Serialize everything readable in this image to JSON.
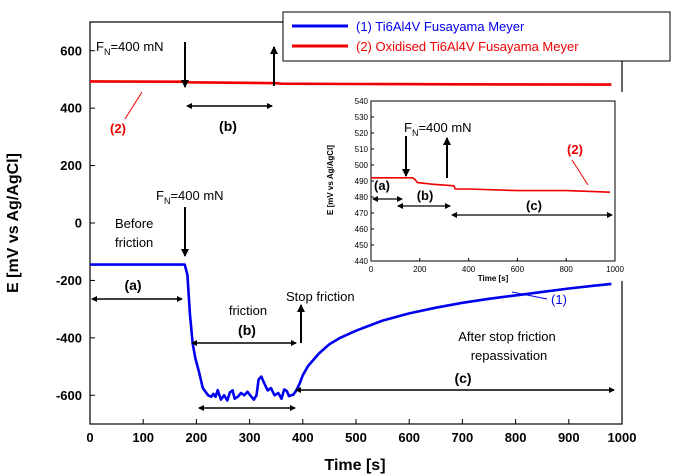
{
  "chart_data": [
    {
      "type": "line",
      "xlabel": "Time [s]",
      "ylabel": "E [mV vs Ag/AgCl]",
      "xlim": [
        0,
        1000
      ],
      "ylim": [
        -700,
        700
      ],
      "x_ticks": [
        "0",
        "100",
        "200",
        "300",
        "400",
        "500",
        "600",
        "700",
        "800",
        "900",
        "1000"
      ],
      "y_ticks": [
        "-600",
        "-400",
        "-200",
        "0",
        "200",
        "400",
        "600"
      ],
      "grid": false,
      "legend_position": "top-right",
      "series": [
        {
          "name": "(1) Ti6Al4V  Fusayama Meyer",
          "color": "#0000ee",
          "points": [
            [
              0,
              -145
            ],
            [
              100,
              -145
            ],
            [
              178,
              -145
            ],
            [
              183,
              -180
            ],
            [
              188,
              -320
            ],
            [
              193,
              -420
            ],
            [
              198,
              -470
            ],
            [
              205,
              -520
            ],
            [
              212,
              -575
            ],
            [
              218,
              -590
            ],
            [
              222,
              -600
            ],
            [
              228,
              -605
            ],
            [
              232,
              -595
            ],
            [
              236,
              -605
            ],
            [
              240,
              -582
            ],
            [
              246,
              -615
            ],
            [
              252,
              -600
            ],
            [
              258,
              -618
            ],
            [
              263,
              -590
            ],
            [
              268,
              -583
            ],
            [
              272,
              -612
            ],
            [
              278,
              -605
            ],
            [
              284,
              -592
            ],
            [
              290,
              -600
            ],
            [
              296,
              -588
            ],
            [
              302,
              -602
            ],
            [
              308,
              -615
            ],
            [
              313,
              -600
            ],
            [
              317,
              -545
            ],
            [
              322,
              -535
            ],
            [
              328,
              -560
            ],
            [
              334,
              -583
            ],
            [
              340,
              -575
            ],
            [
              347,
              -600
            ],
            [
              354,
              -592
            ],
            [
              360,
              -612
            ],
            [
              365,
              -580
            ],
            [
              370,
              -585
            ],
            [
              374,
              -603
            ],
            [
              378,
              -600
            ],
            [
              382,
              -598
            ],
            [
              386,
              -588
            ],
            [
              390,
              -575
            ],
            [
              395,
              -555
            ],
            [
              400,
              -530
            ],
            [
              410,
              -498
            ],
            [
              430,
              -455
            ],
            [
              450,
              -422
            ],
            [
              470,
              -400
            ],
            [
              500,
              -375
            ],
            [
              550,
              -340
            ],
            [
              600,
              -315
            ],
            [
              650,
              -295
            ],
            [
              700,
              -278
            ],
            [
              750,
              -264
            ],
            [
              800,
              -252
            ],
            [
              850,
              -240
            ],
            [
              900,
              -228
            ],
            [
              950,
              -218
            ],
            [
              980,
              -212
            ]
          ]
        },
        {
          "name": "(2) Oxidised Ti6Al4V Fusayama Meyer",
          "color": "#ee0000",
          "points": [
            [
              0,
              493
            ],
            [
              150,
              492
            ],
            [
              180,
              492
            ],
            [
              185,
              490
            ],
            [
              350,
              487
            ],
            [
              360,
              485
            ],
            [
              500,
              484
            ],
            [
              700,
              483
            ],
            [
              980,
              482
            ]
          ]
        }
      ],
      "annotations": {
        "fn1": "F",
        "fn1_sub": "N",
        "fn1_rest": "=400 mN",
        "fn2": "F",
        "fn2_sub": "N",
        "fn2_rest": "=400 mN",
        "before1": "Before",
        "before2": "friction",
        "friction": "friction",
        "stop": "Stop friction",
        "after1": "After stop friction",
        "after2": "repassivation",
        "a": "(a)",
        "b_top": "(b)",
        "b_mid": "(b)",
        "c": "(c)",
        "label1": "(1)",
        "label2": "(2)"
      }
    },
    {
      "type": "line",
      "xlabel": "Time [s]",
      "ylabel": "E [mV vs Ag/AgCl]",
      "xlim": [
        0,
        1000
      ],
      "ylim": [
        440,
        540
      ],
      "x_ticks": [
        "0",
        "200",
        "400",
        "600",
        "800",
        "1000"
      ],
      "y_ticks": [
        "440",
        "450",
        "460",
        "470",
        "480",
        "490",
        "500",
        "510",
        "520",
        "530",
        "540"
      ],
      "series": [
        {
          "name": "(2)",
          "color": "#ee0000",
          "points": [
            [
              0,
              492
            ],
            [
              100,
              492
            ],
            [
              170,
              492
            ],
            [
              180,
              491
            ],
            [
              190,
              489
            ],
            [
              250,
              488
            ],
            [
              340,
              487
            ],
            [
              345,
              485
            ],
            [
              400,
              485
            ],
            [
              600,
              484
            ],
            [
              800,
              484
            ],
            [
              980,
              483
            ]
          ]
        }
      ],
      "annotations": {
        "fn": "F",
        "fn_sub": "N",
        "fn_rest": "=400 mN",
        "a": "(a)",
        "b": "(b)",
        "c": "(c)",
        "label2": "(2)"
      }
    }
  ]
}
